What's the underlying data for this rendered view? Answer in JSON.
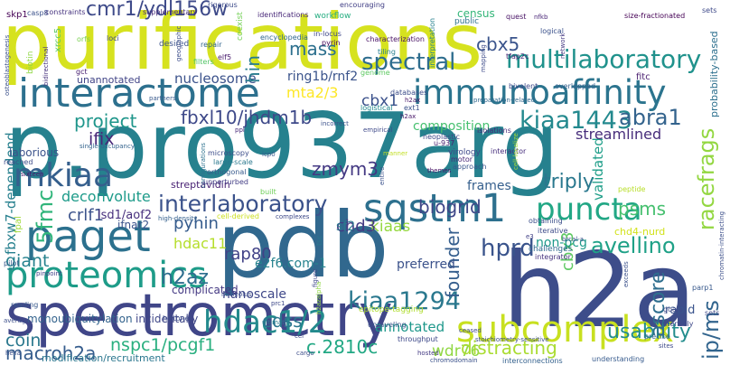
{
  "words": [
    {
      "text": "purifications",
      "color": "#d6e21f"
    },
    {
      "text": "p.pro937arg",
      "color": "#26818e"
    },
    {
      "text": "h2a",
      "color": "#3d4d8a"
    },
    {
      "text": "pdb",
      "color": "#31688e"
    },
    {
      "text": "spectrometry",
      "color": "#404688"
    },
    {
      "text": "interactome",
      "color": "#2d708e"
    },
    {
      "text": "immunoaffinity",
      "color": "#2b748e"
    },
    {
      "text": "subcomplex",
      "color": "#c8e020"
    },
    {
      "text": "multilaboratory",
      "color": "#20928c"
    },
    {
      "text": "paget",
      "color": "#2c718e"
    },
    {
      "text": "proteomics",
      "color": "#1e9c89"
    },
    {
      "text": "interlaboratory",
      "color": "#3b528b"
    },
    {
      "text": "sqstm1",
      "color": "#2d708e"
    },
    {
      "text": "puncta",
      "color": "#22a785"
    },
    {
      "text": "hdac1/2",
      "color": "#238a8d"
    },
    {
      "text": "kiaa1294",
      "color": "#2a788e"
    },
    {
      "text": "kiaa1443",
      "color": "#23898e"
    },
    {
      "text": "mkiaa",
      "color": "#355f8d"
    },
    {
      "text": "cmr1/ydl156w",
      "color": "#3e4a89"
    },
    {
      "text": "spectral",
      "color": "#2e6d8e"
    },
    {
      "text": "fbxl10/jhdm1b",
      "color": "#3e4989"
    },
    {
      "text": "abra1",
      "color": "#33638d"
    },
    {
      "text": "hprd",
      "color": "#3a548c"
    },
    {
      "text": "avellino",
      "color": "#1fa187"
    },
    {
      "text": "racefrags",
      "color": "#93d741"
    },
    {
      "text": "mass",
      "color": "#2d708e"
    },
    {
      "text": "usability",
      "color": "#228d8d"
    },
    {
      "text": "subcomplex",
      "color": "#c8e020"
    },
    {
      "text": "cbx5",
      "color": "#3a548c"
    },
    {
      "text": "mta2/3",
      "color": "#fde725"
    },
    {
      "text": "cbx1",
      "color": "#3b518b"
    },
    {
      "text": "zmym3",
      "color": "#443983"
    },
    {
      "text": "project",
      "color": "#1f968b"
    },
    {
      "text": "ifix",
      "color": "#482878"
    },
    {
      "text": "triply",
      "color": "#2a788e"
    },
    {
      "text": "ascore",
      "color": "#2e6e8e"
    },
    {
      "text": "biogrid",
      "color": "#3f4788"
    },
    {
      "text": "founder",
      "color": "#355e8d"
    },
    {
      "text": "psms",
      "color": "#46c06f"
    },
    {
      "text": "pyhin",
      "color": "#365c8d"
    },
    {
      "text": "hdac11",
      "color": "#b5de2b"
    },
    {
      "text": "rap80",
      "color": "#414287"
    },
    {
      "text": "h2az",
      "color": "#2e6e8e"
    },
    {
      "text": "giant",
      "color": "#26828e"
    },
    {
      "text": "cdss",
      "color": "#2a768e"
    },
    {
      "text": "nanoscale",
      "color": "#3f4889"
    },
    {
      "text": "c.2810c",
      "color": "#22a884"
    },
    {
      "text": "nspc1/pcgf1",
      "color": "#29af7f"
    },
    {
      "text": "coin",
      "color": "#2a788e"
    },
    {
      "text": "macroh2a",
      "color": "#365d8d"
    },
    {
      "text": "wdr76",
      "color": "#90d743"
    },
    {
      "text": "distracting",
      "color": "#aadc32"
    },
    {
      "text": "annotated",
      "color": "#1f988b"
    },
    {
      "text": "ip/ms",
      "color": "#32658e"
    },
    {
      "text": "5fmc",
      "color": "#31b57b"
    },
    {
      "text": "nucleosome",
      "color": "#3b528b"
    },
    {
      "text": "deconvolute",
      "color": "#1e9b8a"
    },
    {
      "text": "crlf1",
      "color": "#3b528b"
    },
    {
      "text": "hin",
      "color": "#287c8e"
    },
    {
      "text": "ring1b/rnf2",
      "color": "#3a538b"
    },
    {
      "text": "kiaas",
      "color": "#95d840"
    },
    {
      "text": "chd3",
      "color": "#443a83"
    },
    {
      "text": "cbx3",
      "color": "#5ec962"
    },
    {
      "text": "e2f6.com-1",
      "color": "#26828e"
    },
    {
      "text": "composition",
      "color": "#46c06f"
    },
    {
      "text": "validated",
      "color": "#1f9e89"
    },
    {
      "text": "streamlined",
      "color": "#472d7b"
    },
    {
      "text": "frames",
      "color": "#355f8d"
    },
    {
      "text": "non-pcg",
      "color": "#1f9a8a"
    },
    {
      "text": "preferred",
      "color": "#3b528b"
    },
    {
      "text": "fbxw7-dependend",
      "color": "#27808e"
    },
    {
      "text": "modification/recruitment",
      "color": "#2a768e"
    },
    {
      "text": "monoubiquitylation",
      "color": "#33638d"
    },
    {
      "text": "lsd1/aof2",
      "color": "#472f7d"
    },
    {
      "text": "ifnar2",
      "color": "#3a538b"
    },
    {
      "text": "sf2",
      "color": "#2a778e"
    },
    {
      "text": "complicated",
      "color": "#443983"
    },
    {
      "text": "incidentally",
      "color": "#3f4788"
    },
    {
      "text": "chd4-nurd",
      "color": "#d2e21b"
    },
    {
      "text": "rapid",
      "color": "#3a548c"
    },
    {
      "text": "streptavidin",
      "color": "#482173"
    },
    {
      "text": "cbx1",
      "color": "#3b518b"
    },
    {
      "text": "unannotated",
      "color": "#414487"
    },
    {
      "text": "laborious",
      "color": "#3b528b"
    },
    {
      "text": "skp1",
      "color": "#440154"
    },
    {
      "text": "biotin",
      "color": "#8fd744"
    },
    {
      "text": "casp8",
      "color": "#3b518b"
    },
    {
      "text": "constraints",
      "color": "#46337f"
    },
    {
      "text": "supplementary",
      "color": "#472a7a"
    },
    {
      "text": "rigorous",
      "color": "#3e4c8a"
    },
    {
      "text": "identifications",
      "color": "#482878"
    },
    {
      "text": "encouraging",
      "color": "#424086"
    },
    {
      "text": "census",
      "color": "#34b679"
    },
    {
      "text": "size-fractionated",
      "color": "#440154"
    },
    {
      "text": "sets",
      "color": "#3e4a89"
    },
    {
      "text": "nfkb",
      "color": "#482576"
    },
    {
      "text": "quest",
      "color": "#471164"
    },
    {
      "text": "public",
      "color": "#2c718e"
    },
    {
      "text": "workflow",
      "color": "#26ad81"
    },
    {
      "text": "coexist",
      "color": "#73d056"
    },
    {
      "text": "in-locus",
      "color": "#3f4889"
    },
    {
      "text": "pyrin",
      "color": "#46075a"
    },
    {
      "text": "encyclopedia",
      "color": "#31688e"
    },
    {
      "text": "loci",
      "color": "#3e4989"
    },
    {
      "text": "orfs",
      "color": "#7ad151"
    },
    {
      "text": "xrcc5",
      "color": "#5cc863"
    },
    {
      "text": "desired",
      "color": "#3b528b"
    },
    {
      "text": "repair",
      "color": "#32658e"
    },
    {
      "text": "characterization",
      "color": "#471063"
    },
    {
      "text": "tiling",
      "color": "#277f8e"
    },
    {
      "text": "filters",
      "color": "#54c568"
    },
    {
      "text": "geographic",
      "color": "#3d4e8a"
    },
    {
      "text": "elf5",
      "color": "#481b6d"
    },
    {
      "text": "genome",
      "color": "#5ec962"
    },
    {
      "text": "interpretation",
      "color": "#26818e"
    },
    {
      "text": "tfap2c",
      "color": "#482475"
    },
    {
      "text": "mapping",
      "color": "#3e4c8a"
    },
    {
      "text": "logical",
      "color": "#3b518b"
    },
    {
      "text": "network",
      "color": "#453882"
    },
    {
      "text": "fitc",
      "color": "#481d6f"
    },
    {
      "text": "probability-based",
      "color": "#2d708e"
    },
    {
      "text": "osteoblastogenesis",
      "color": "#3b518b"
    },
    {
      "text": "bidirectional",
      "color": "#46327e"
    },
    {
      "text": "multilaboratory",
      "color": "#20928c"
    },
    {
      "text": "bivalent",
      "color": "#3e4989"
    },
    {
      "text": "overlapped",
      "color": "#34608d"
    },
    {
      "text": "databases",
      "color": "#3d4e8a"
    },
    {
      "text": "h2ax",
      "color": "#481769"
    },
    {
      "text": "preparation-related",
      "color": "#31688e"
    },
    {
      "text": "logistical",
      "color": "#23898e"
    },
    {
      "text": "ext1",
      "color": "#3b528b"
    },
    {
      "text": "partners",
      "color": "#38598c"
    },
    {
      "text": "incorrect",
      "color": "#3b518b"
    },
    {
      "text": "ppi",
      "color": "#482979"
    },
    {
      "text": "isolations",
      "color": "#472a7a"
    },
    {
      "text": "neoplastic",
      "color": "#3f4889"
    },
    {
      "text": "virology",
      "color": "#3e4989"
    },
    {
      "text": "u-937",
      "color": "#482071"
    },
    {
      "text": "interactor",
      "color": "#472f7d"
    },
    {
      "text": "motor",
      "color": "#482878"
    },
    {
      "text": "approach",
      "color": "#39568c"
    },
    {
      "text": "themes",
      "color": "#471365"
    },
    {
      "text": "microscopy",
      "color": "#3d4e8a"
    },
    {
      "text": "icp0",
      "color": "#38588c"
    },
    {
      "text": "large-scale",
      "color": "#2a788e"
    },
    {
      "text": "orthogonal",
      "color": "#375a8c"
    },
    {
      "text": "single-occupancy",
      "color": "#33638d"
    },
    {
      "text": "reached",
      "color": "#3e4c8a"
    },
    {
      "text": "sixteen",
      "color": "#481769"
    },
    {
      "text": "configurations",
      "color": "#2c718e"
    },
    {
      "text": "unperturbed",
      "color": "#433e85"
    },
    {
      "text": "built",
      "color": "#6ece58"
    },
    {
      "text": "peptide",
      "color": "#b8de29"
    },
    {
      "text": "fpal",
      "color": "#a0da39"
    },
    {
      "text": "high-density",
      "color": "#35608d"
    },
    {
      "text": "cell-derived",
      "color": "#ccdf1e"
    },
    {
      "text": "complexes",
      "color": "#3e4989"
    },
    {
      "text": "obtaining",
      "color": "#3c4f8a"
    },
    {
      "text": "iterative",
      "color": "#3e4c8a"
    },
    {
      "text": "challenges",
      "color": "#31688e"
    },
    {
      "text": "integrator",
      "color": "#46327e"
    },
    {
      "text": "brcal-a",
      "color": "#3b528b"
    },
    {
      "text": "e3",
      "color": "#424086"
    },
    {
      "text": "tsc",
      "color": "#2a778e"
    },
    {
      "text": "pilot",
      "color": "#375b8d"
    },
    {
      "text": "pinpoint",
      "color": "#414287"
    },
    {
      "text": "nucleolus",
      "color": "#3d4e8a"
    },
    {
      "text": "prc1",
      "color": "#3e4989"
    },
    {
      "text": "reading",
      "color": "#38598c"
    },
    {
      "text": "average",
      "color": "#3c4f8a"
    },
    {
      "text": "histone",
      "color": "#3e4c8a"
    },
    {
      "text": "ultimate",
      "color": "#287c8e"
    },
    {
      "text": "figure",
      "color": "#3f4889"
    },
    {
      "text": "h2azalpha",
      "color": "#8fd744"
    },
    {
      "text": "epitope-tagging",
      "color": "#b0dd2f"
    },
    {
      "text": "unraveling",
      "color": "#3b528b"
    },
    {
      "text": "ceased",
      "color": "#3e4989"
    },
    {
      "text": "stoichiometry-sensitive",
      "color": "#3c4f8a"
    },
    {
      "text": "throughput",
      "color": "#3e4989"
    },
    {
      "text": "hosted",
      "color": "#443a83"
    },
    {
      "text": "chromodomain",
      "color": "#3b528b"
    },
    {
      "text": "interconnections",
      "color": "#34618d"
    },
    {
      "text": "understanding",
      "color": "#375b8d"
    },
    {
      "text": "intensely",
      "color": "#3f4889"
    },
    {
      "text": "precise",
      "color": "#32658e"
    },
    {
      "text": "sites",
      "color": "#3e4a89"
    },
    {
      "text": "goal",
      "color": "#3e4c8a"
    },
    {
      "text": "parp1",
      "color": "#38598c"
    },
    {
      "text": "sets",
      "color": "#3e4a89"
    },
    {
      "text": "chromatin-interacting",
      "color": "#3c4f8a"
    },
    {
      "text": "exceeds",
      "color": "#3b518b"
    },
    {
      "text": "gct",
      "color": "#482071"
    },
    {
      "text": "helia",
      "color": "#3b518b"
    },
    {
      "text": "cargo",
      "color": "#3d4e8a"
    },
    {
      "text": "cel",
      "color": "#3e4989"
    },
    {
      "text": "entire",
      "color": "#3b528b"
    },
    {
      "text": "manner",
      "color": "#c2df23"
    },
    {
      "text": "cell-localize",
      "color": "#a2da37"
    },
    {
      "text": "empirical",
      "color": "#3e4989"
    },
    {
      "text": "h2ax",
      "color": "#481769"
    }
  ]
}
